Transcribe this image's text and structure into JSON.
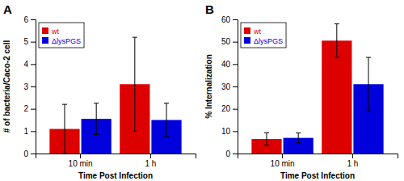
{
  "chart_data": [
    {
      "type": "bar",
      "title": "A",
      "xlabel": "Time Post Infection",
      "ylabel": "# of bacteria/Caco-2 cell",
      "categories": [
        "10 min",
        "1 h"
      ],
      "series": [
        {
          "name": "wt",
          "color": "#dd0000",
          "values": [
            1.1,
            3.1
          ],
          "errors": [
            1.1,
            2.1
          ]
        },
        {
          "name": "ΔlysPGS",
          "color": "#0000dd",
          "values": [
            1.55,
            1.5
          ],
          "errors": [
            0.7,
            0.75
          ]
        }
      ],
      "ylim": [
        0,
        6
      ],
      "yticks": [
        0,
        1,
        2,
        3,
        4,
        5,
        6
      ],
      "grid": false,
      "legend": "upper left"
    },
    {
      "type": "bar",
      "title": "B",
      "xlabel": "Time Post Infection",
      "ylabel": "% Internalization",
      "categories": [
        "10 min",
        "1 h"
      ],
      "series": [
        {
          "name": "wt",
          "color": "#dd0000",
          "values": [
            6.5,
            50.5
          ],
          "errors": [
            2.8,
            7.5
          ]
        },
        {
          "name": "ΔlysPGS",
          "color": "#0000dd",
          "values": [
            7.0,
            31.0
          ],
          "errors": [
            2.2,
            12.0
          ]
        }
      ],
      "ylim": [
        0,
        60
      ],
      "yticks": [
        0,
        10,
        20,
        30,
        40,
        50,
        60
      ],
      "grid": false,
      "legend": "upper left"
    }
  ]
}
